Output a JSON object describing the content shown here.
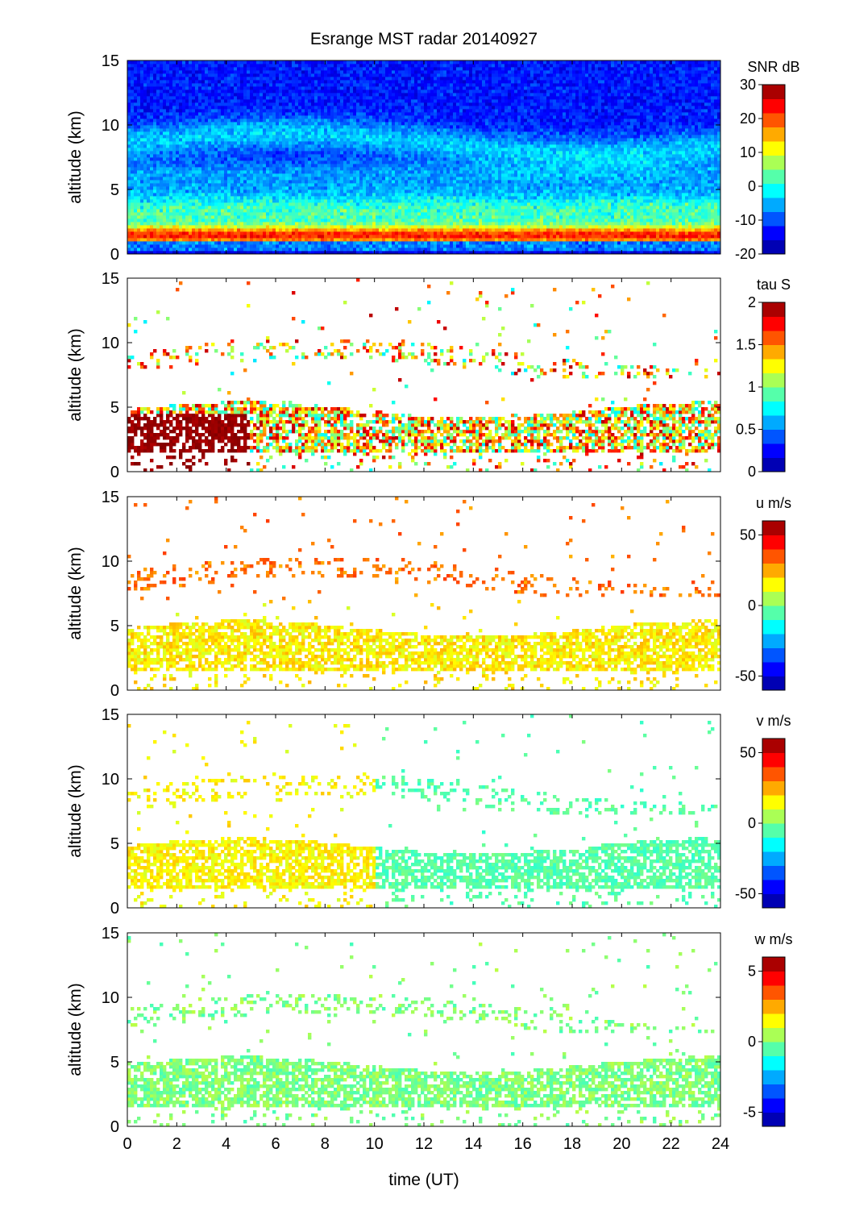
{
  "title": "Esrange MST radar 20140927",
  "xlabel": "time (UT)",
  "colormap": [
    "#00008f",
    "#0000ff",
    "#007fff",
    "#00ffff",
    "#7fff7f",
    "#ffff00",
    "#ff7f00",
    "#ff0000",
    "#7f0000"
  ],
  "chart_data": [
    {
      "type": "heatmap",
      "panel": "SNR",
      "ylabel": "altitude (km)",
      "colorbar_label": "SNR dB",
      "colorbar_ticks": [
        "30",
        "20",
        "10",
        "0",
        "-10",
        "-20"
      ],
      "colorbar_range": [
        -20,
        30
      ],
      "xlim": [
        0,
        24
      ],
      "ylim": [
        0,
        15
      ],
      "x_ticks": [
        "0",
        "2",
        "4",
        "6",
        "8",
        "10",
        "12",
        "14",
        "16",
        "18",
        "20",
        "22",
        "24"
      ],
      "y_ticks": [
        "0",
        "5",
        "10",
        "15"
      ],
      "approx_profile": [
        {
          "altitude_km": 0.5,
          "value": -12
        },
        {
          "altitude_km": 1.5,
          "value": 25
        },
        {
          "altitude_km": 3.5,
          "value": 8
        },
        {
          "altitude_km": 6,
          "value": -5
        },
        {
          "altitude_km": 8.5,
          "value": -3
        },
        {
          "altitude_km": 12,
          "value": -13
        }
      ]
    },
    {
      "type": "heatmap",
      "panel": "tau",
      "ylabel": "altitude (km)",
      "colorbar_label": "tau S",
      "colorbar_ticks": [
        "2",
        "1.5",
        "1",
        "0.5",
        "0"
      ],
      "colorbar_range": [
        0,
        2
      ],
      "xlim": [
        0,
        24
      ],
      "ylim": [
        0,
        15
      ],
      "x_ticks": [
        "0",
        "2",
        "4",
        "6",
        "8",
        "10",
        "12",
        "14",
        "16",
        "18",
        "20",
        "22",
        "24"
      ],
      "y_ticks": [
        "0",
        "5",
        "10",
        "15"
      ]
    },
    {
      "type": "heatmap",
      "panel": "u",
      "ylabel": "altitude (km)",
      "colorbar_label": "u m/s",
      "colorbar_ticks": [
        "50",
        "0",
        "-50"
      ],
      "colorbar_range": [
        -60,
        60
      ],
      "xlim": [
        0,
        24
      ],
      "ylim": [
        0,
        15
      ],
      "x_ticks": [
        "0",
        "2",
        "4",
        "6",
        "8",
        "10",
        "12",
        "14",
        "16",
        "18",
        "20",
        "22",
        "24"
      ],
      "y_ticks": [
        "0",
        "5",
        "10",
        "15"
      ]
    },
    {
      "type": "heatmap",
      "panel": "v",
      "ylabel": "altitude (km)",
      "colorbar_label": "v m/s",
      "colorbar_ticks": [
        "50",
        "0",
        "-50"
      ],
      "colorbar_range": [
        -60,
        60
      ],
      "xlim": [
        0,
        24
      ],
      "ylim": [
        0,
        15
      ],
      "x_ticks": [
        "0",
        "2",
        "4",
        "6",
        "8",
        "10",
        "12",
        "14",
        "16",
        "18",
        "20",
        "22",
        "24"
      ],
      "y_ticks": [
        "0",
        "5",
        "10",
        "15"
      ]
    },
    {
      "type": "heatmap",
      "panel": "w",
      "ylabel": "altitude (km)",
      "colorbar_label": "w m/s",
      "colorbar_ticks": [
        "5",
        "0",
        "-5"
      ],
      "colorbar_range": [
        -6,
        6
      ],
      "xlim": [
        0,
        24
      ],
      "ylim": [
        0,
        15
      ],
      "x_ticks": [
        "0",
        "2",
        "4",
        "6",
        "8",
        "10",
        "12",
        "14",
        "16",
        "18",
        "20",
        "22",
        "24"
      ],
      "y_ticks": [
        "0",
        "5",
        "10",
        "15"
      ]
    }
  ]
}
